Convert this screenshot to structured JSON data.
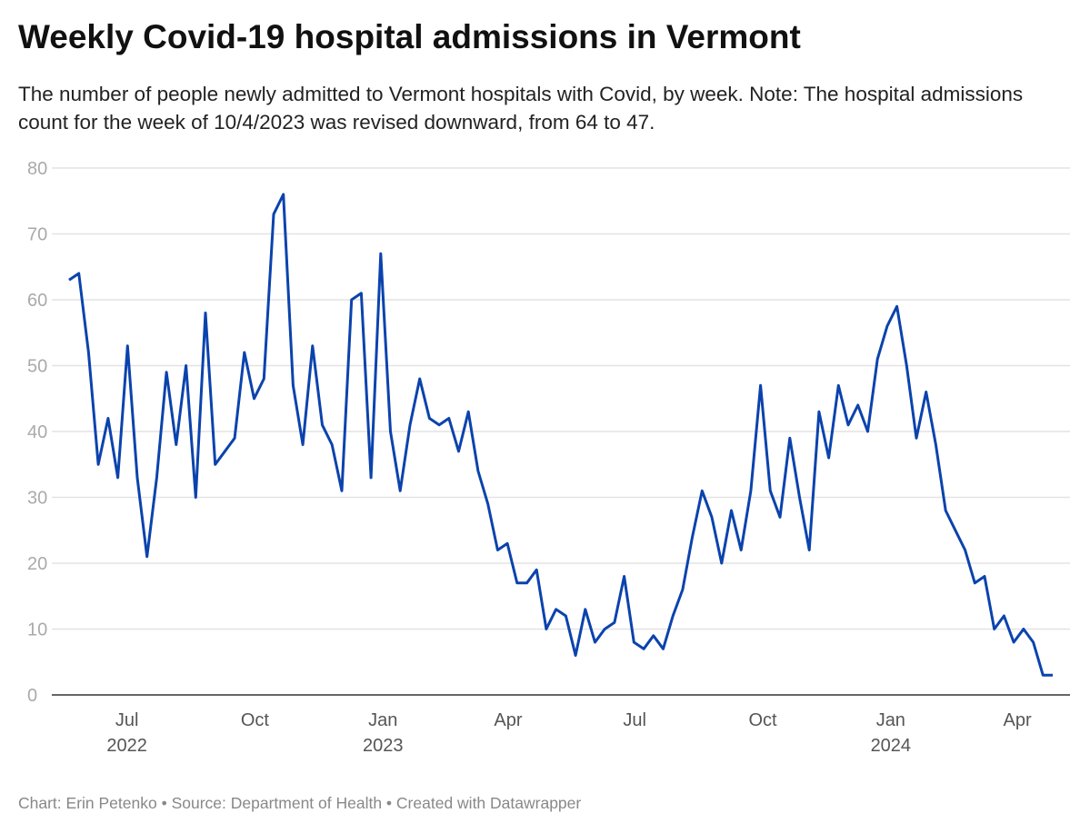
{
  "title": "Weekly Covid-19 hospital admissions in Vermont",
  "subtitle": "The number of people newly admitted to Vermont hospitals with Covid, by week. Note: The hospital admissions count for the week of 10/4/2023 was revised downward, from 64 to 47.",
  "footer": "Chart: Erin Petenko • Source: Department of Health • Created with Datawrapper",
  "colors": {
    "line": "#0b43ad",
    "grid": "#e3e3e3",
    "axis": "#333333"
  },
  "chart_data": {
    "type": "line",
    "title": "Weekly Covid-19 hospital admissions in Vermont",
    "xlabel": "",
    "ylabel": "",
    "ylim": [
      0,
      80
    ],
    "grid": true,
    "yticks": [
      "0",
      "10",
      "20",
      "30",
      "40",
      "50",
      "60",
      "70",
      "80"
    ],
    "xticks": [
      {
        "date": "2022-07-01",
        "label": "Jul",
        "year": "2022"
      },
      {
        "date": "2022-10-01",
        "label": "Oct",
        "year": ""
      },
      {
        "date": "2023-01-01",
        "label": "Jan",
        "year": "2023"
      },
      {
        "date": "2023-04-01",
        "label": "Apr",
        "year": ""
      },
      {
        "date": "2023-07-01",
        "label": "Jul",
        "year": ""
      },
      {
        "date": "2023-10-01",
        "label": "Oct",
        "year": ""
      },
      {
        "date": "2024-01-01",
        "label": "Jan",
        "year": "2024"
      },
      {
        "date": "2024-04-01",
        "label": "Apr",
        "year": ""
      }
    ],
    "x": [
      "2022-05-25",
      "2022-06-01",
      "2022-06-08",
      "2022-06-15",
      "2022-06-22",
      "2022-06-29",
      "2022-07-06",
      "2022-07-13",
      "2022-07-20",
      "2022-07-27",
      "2022-08-03",
      "2022-08-10",
      "2022-08-17",
      "2022-08-24",
      "2022-08-31",
      "2022-09-07",
      "2022-09-14",
      "2022-09-21",
      "2022-09-28",
      "2022-10-05",
      "2022-10-12",
      "2022-10-19",
      "2022-10-26",
      "2022-11-02",
      "2022-11-09",
      "2022-11-16",
      "2022-11-23",
      "2022-11-30",
      "2022-12-07",
      "2022-12-14",
      "2022-12-21",
      "2022-12-28",
      "2023-01-04",
      "2023-01-11",
      "2023-01-18",
      "2023-01-25",
      "2023-02-01",
      "2023-02-08",
      "2023-02-15",
      "2023-02-22",
      "2023-03-01",
      "2023-03-08",
      "2023-03-15",
      "2023-03-22",
      "2023-03-29",
      "2023-04-05",
      "2023-04-12",
      "2023-04-19",
      "2023-04-26",
      "2023-05-03",
      "2023-05-10",
      "2023-05-17",
      "2023-05-24",
      "2023-05-31",
      "2023-06-07",
      "2023-06-14",
      "2023-06-21",
      "2023-06-28",
      "2023-07-05",
      "2023-07-12",
      "2023-07-19",
      "2023-07-26",
      "2023-08-02",
      "2023-08-09",
      "2023-08-16",
      "2023-08-23",
      "2023-08-30",
      "2023-09-06",
      "2023-09-13",
      "2023-09-20",
      "2023-09-27",
      "2023-10-04",
      "2023-10-11",
      "2023-10-18",
      "2023-10-25",
      "2023-11-01",
      "2023-11-08",
      "2023-11-15",
      "2023-11-22",
      "2023-11-29",
      "2023-12-06",
      "2023-12-13",
      "2023-12-20",
      "2023-12-27",
      "2024-01-03",
      "2024-01-10",
      "2024-01-17",
      "2024-01-24",
      "2024-01-31",
      "2024-02-07",
      "2024-02-14",
      "2024-02-21",
      "2024-02-28",
      "2024-03-06",
      "2024-03-13",
      "2024-03-20",
      "2024-03-27",
      "2024-04-03",
      "2024-04-10",
      "2024-04-17",
      "2024-04-24",
      "2024-05-01"
    ],
    "series": [
      {
        "values": [
          63,
          64,
          52,
          35,
          42,
          33,
          53,
          33,
          21,
          33,
          49,
          38,
          50,
          30,
          58,
          35,
          37,
          39,
          52,
          45,
          48,
          73,
          76,
          47,
          38,
          53,
          41,
          38,
          31,
          60,
          61,
          33,
          67,
          40,
          31,
          41,
          48,
          42,
          41,
          42,
          37,
          43,
          34,
          29,
          22,
          23,
          17,
          17,
          19,
          10,
          13,
          12,
          6,
          13,
          8,
          10,
          11,
          18,
          8,
          7,
          9,
          7,
          12,
          16,
          24,
          31,
          27,
          20,
          28,
          22,
          31,
          47,
          31,
          27,
          39,
          30,
          22,
          43,
          36,
          47,
          41,
          44,
          40,
          51,
          56,
          59,
          50,
          39,
          46,
          38,
          28,
          25,
          22,
          17,
          18,
          10,
          12,
          8,
          10,
          8,
          3,
          3
        ]
      }
    ]
  }
}
